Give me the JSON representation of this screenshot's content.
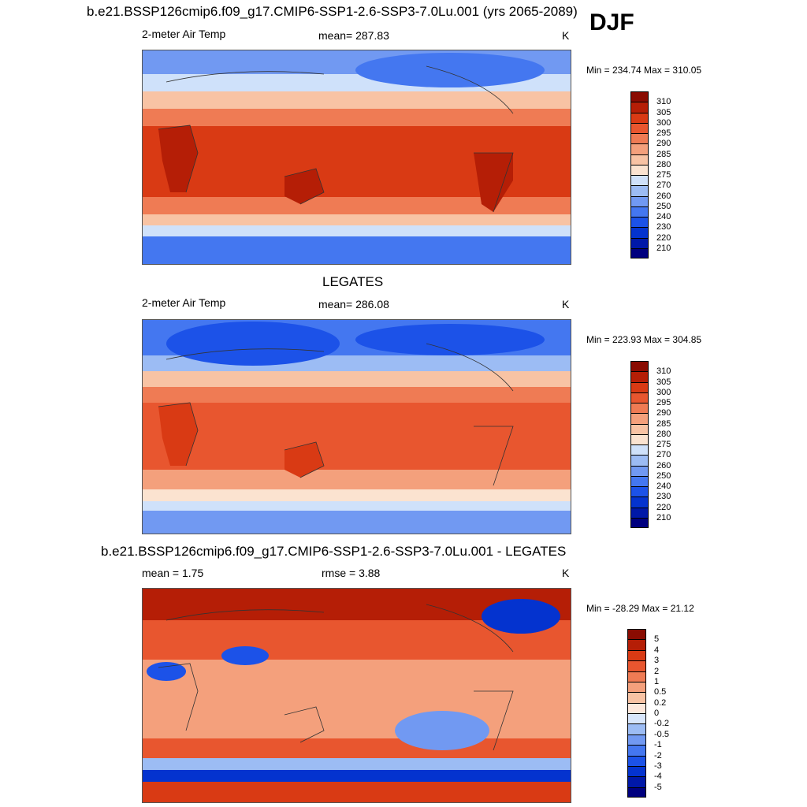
{
  "header": {
    "title": "b.e21.BSSP126cmip6.f09_g17.CMIP6-SSP1-2.6-SSP3-7.0Lu.001 (yrs 2065-2089)",
    "season": "DJF"
  },
  "panels": [
    {
      "id": "model",
      "title": "",
      "left_label": "2-meter Air Temp",
      "center_label": "mean= 287.83",
      "unit": "K",
      "minmax": "Min = 234.74 Max = 310.05"
    },
    {
      "id": "obs",
      "title": "LEGATES",
      "left_label": "2-meter Air Temp",
      "center_label": "mean= 286.08",
      "unit": "K",
      "minmax": "Min = 223.93 Max = 304.85"
    },
    {
      "id": "diff",
      "title": "b.e21.BSSP126cmip6.f09_g17.CMIP6-SSP1-2.6-SSP3-7.0Lu.001 - LEGATES",
      "left_label": "mean =   1.75",
      "center_label": "rmse =   3.88",
      "unit": "K",
      "minmax": "Min = -28.29 Max =  21.12"
    }
  ],
  "chart_data": [
    {
      "type": "heatmap",
      "title": "2-meter Air Temp",
      "mean": 287.83,
      "min": 234.74,
      "max": 310.05,
      "unit": "K",
      "levels": [
        210,
        220,
        230,
        240,
        250,
        260,
        270,
        275,
        280,
        285,
        290,
        295,
        300,
        305,
        310
      ],
      "colors": [
        "#00007f",
        "#0018a8",
        "#0433cf",
        "#1c52e8",
        "#4477f0",
        "#7199f2",
        "#9cbcf4",
        "#cfe1fa",
        "#fbe3d0",
        "#f8c3a4",
        "#f4a07c",
        "#ef7b54",
        "#e8562f",
        "#d93a14",
        "#b51e06",
        "#8a0c02"
      ]
    },
    {
      "type": "heatmap",
      "title": "LEGATES",
      "mean": 286.08,
      "min": 223.93,
      "max": 304.85,
      "unit": "K",
      "levels": [
        210,
        220,
        230,
        240,
        250,
        260,
        270,
        275,
        280,
        285,
        290,
        295,
        300,
        305,
        310
      ],
      "colors": [
        "#00007f",
        "#0018a8",
        "#0433cf",
        "#1c52e8",
        "#4477f0",
        "#7199f2",
        "#9cbcf4",
        "#cfe1fa",
        "#fbe3d0",
        "#f8c3a4",
        "#f4a07c",
        "#ef7b54",
        "#e8562f",
        "#d93a14",
        "#b51e06",
        "#8a0c02"
      ]
    },
    {
      "type": "heatmap",
      "title": "b.e21.BSSP126cmip6.f09_g17.CMIP6-SSP1-2.6-SSP3-7.0Lu.001 - LEGATES",
      "mean": 1.75,
      "rmse": 3.88,
      "min": -28.29,
      "max": 21.12,
      "unit": "K",
      "levels": [
        -5,
        -4,
        -3,
        -2,
        -1,
        -0.5,
        -0.2,
        0,
        0.2,
        0.5,
        1,
        2,
        3,
        4,
        5
      ],
      "colors": [
        "#00007f",
        "#0018a8",
        "#0433cf",
        "#1c52e8",
        "#4477f0",
        "#7199f2",
        "#9cbcf4",
        "#d8e6fb",
        "#fde8dc",
        "#f8c3a4",
        "#f4a07c",
        "#ef7b54",
        "#e8562f",
        "#d93a14",
        "#b51e06",
        "#8a0c02"
      ]
    }
  ]
}
